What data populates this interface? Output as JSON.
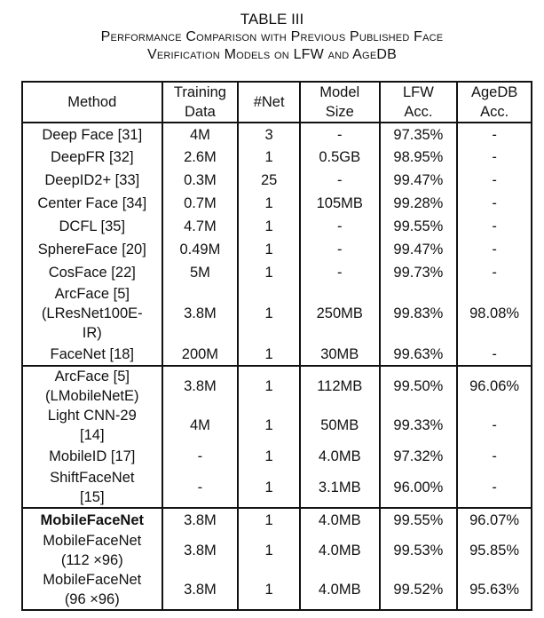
{
  "caption": {
    "label": "TABLE III",
    "line1": "Performance Comparison with Previous Published Face",
    "line2": "Verification Models on LFW and AgeDB"
  },
  "headers": [
    [
      "Method"
    ],
    [
      "Training",
      "Data"
    ],
    [
      "#Net"
    ],
    [
      "Model",
      "Size"
    ],
    [
      "LFW",
      "Acc."
    ],
    [
      "AgeDB",
      "Acc."
    ]
  ],
  "sections": [
    {
      "rows": [
        {
          "method": [
            "Deep Face [31]"
          ],
          "data": "4M",
          "net": "3",
          "size": "-",
          "lfw": "97.35%",
          "agedb": "-"
        },
        {
          "method": [
            "DeepFR [32]"
          ],
          "data": "2.6M",
          "net": "1",
          "size": "0.5GB",
          "lfw": "98.95%",
          "agedb": "-"
        },
        {
          "method": [
            "DeepID2+ [33]"
          ],
          "data": "0.3M",
          "net": "25",
          "size": "-",
          "lfw": "99.47%",
          "agedb": "-"
        },
        {
          "method": [
            "Center Face [34]"
          ],
          "data": "0.7M",
          "net": "1",
          "size": "105MB",
          "lfw": "99.28%",
          "agedb": "-"
        },
        {
          "method": [
            "DCFL [35]"
          ],
          "data": "4.7M",
          "net": "1",
          "size": "-",
          "lfw": "99.55%",
          "agedb": "-"
        },
        {
          "method": [
            "SphereFace [20]"
          ],
          "data": "0.49M",
          "net": "1",
          "size": "-",
          "lfw": "99.47%",
          "agedb": "-"
        },
        {
          "method": [
            "CosFace [22]"
          ],
          "data": "5M",
          "net": "1",
          "size": "-",
          "lfw": "99.73%",
          "agedb": "-"
        },
        {
          "method": [
            "ArcFace [5]",
            "(LResNet100E-",
            "IR)"
          ],
          "data": "3.8M",
          "net": "1",
          "size": "250MB",
          "lfw": "99.83%",
          "agedb": "98.08%"
        },
        {
          "method": [
            "FaceNet [18]"
          ],
          "data": "200M",
          "net": "1",
          "size": "30MB",
          "lfw": "99.63%",
          "agedb": "-"
        }
      ]
    },
    {
      "rows": [
        {
          "method": [
            "ArcFace [5]",
            "(LMobileNetE)"
          ],
          "data": "3.8M",
          "net": "1",
          "size": "112MB",
          "lfw": "99.50%",
          "agedb": "96.06%"
        },
        {
          "method": [
            "Light CNN-29",
            "[14]"
          ],
          "data": "4M",
          "net": "1",
          "size": "50MB",
          "lfw": "99.33%",
          "agedb": "-"
        },
        {
          "method": [
            "MobileID [17]"
          ],
          "data": "-",
          "net": "1",
          "size": "4.0MB",
          "lfw": "97.32%",
          "agedb": "-"
        },
        {
          "method": [
            "ShiftFaceNet",
            "[15]"
          ],
          "data": "-",
          "net": "1",
          "size": "3.1MB",
          "lfw": "96.00%",
          "agedb": "-"
        }
      ]
    },
    {
      "rows": [
        {
          "method": [
            "MobileFaceNet"
          ],
          "bold": true,
          "data": "3.8M",
          "net": "1",
          "size": "4.0MB",
          "lfw": "99.55%",
          "agedb": "96.07%"
        },
        {
          "method": [
            "MobileFaceNet",
            "(112 ×96)"
          ],
          "data": "3.8M",
          "net": "1",
          "size": "4.0MB",
          "lfw": "99.53%",
          "agedb": "95.85%"
        },
        {
          "method": [
            "MobileFaceNet",
            "(96 ×96)"
          ],
          "data": "3.8M",
          "net": "1",
          "size": "4.0MB",
          "lfw": "99.52%",
          "agedb": "95.63%"
        }
      ]
    }
  ]
}
